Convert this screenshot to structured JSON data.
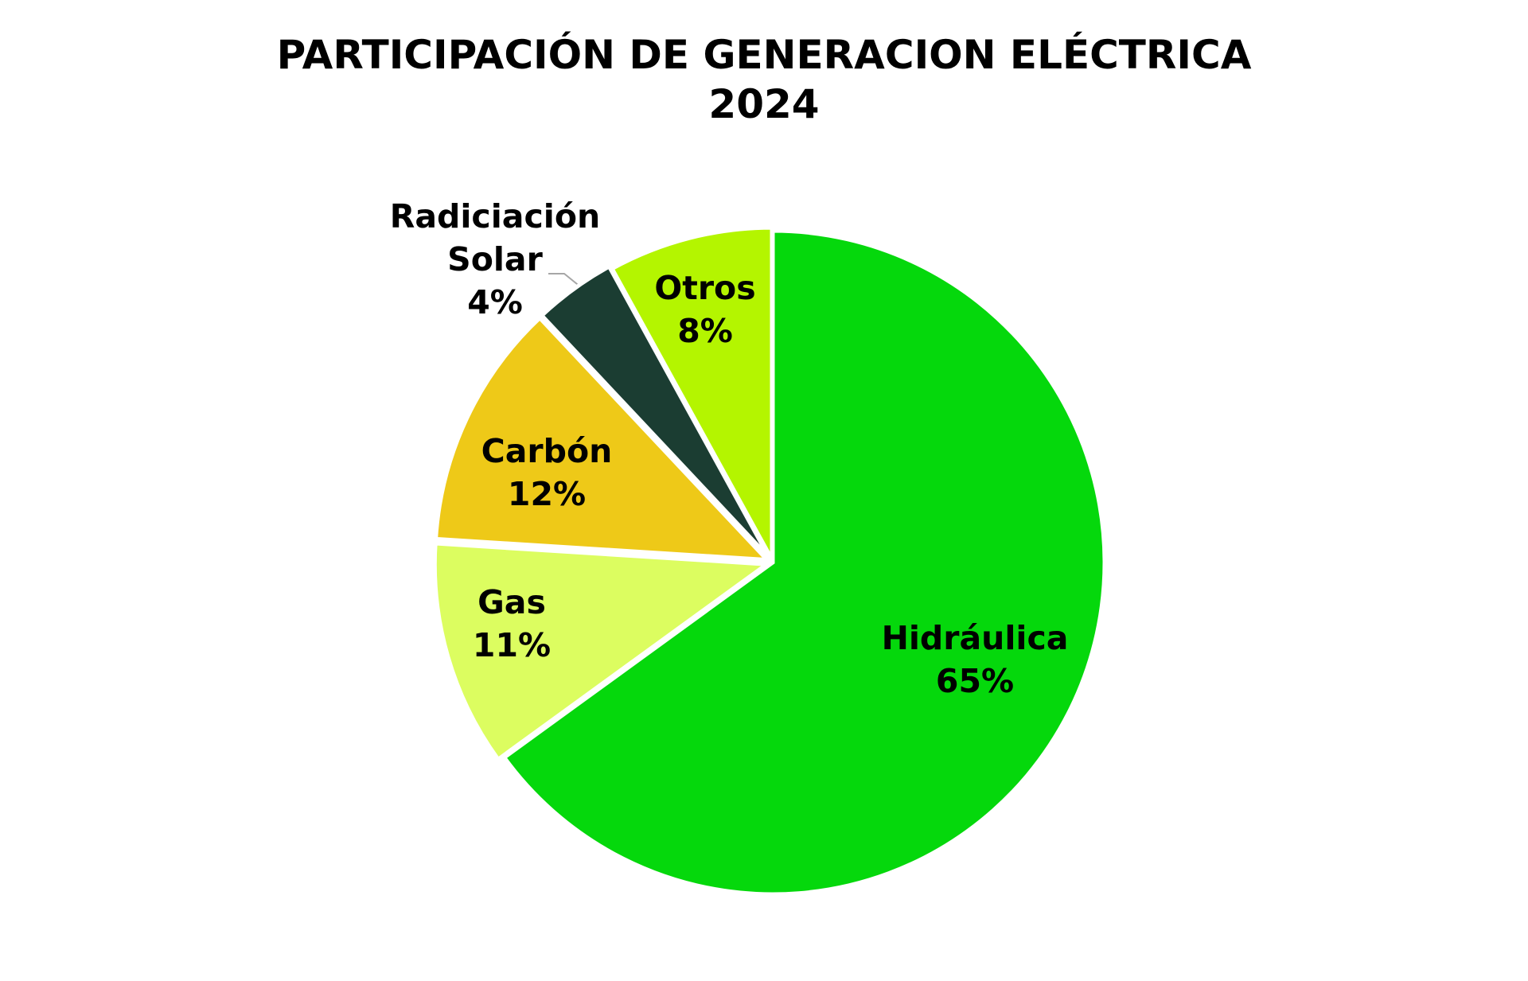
{
  "chart_data": {
    "type": "pie",
    "title": "PARTICIPACIÓN DE GENERACION ELÉCTRICA",
    "subtitle": "2024",
    "categories": [
      "Hidráulica",
      "Gas",
      "Carbón",
      "Radiciación Solar",
      "Otros"
    ],
    "values": [
      65,
      11,
      12,
      4,
      8
    ],
    "value_labels": [
      "65%",
      "11%",
      "12%",
      "4%",
      "8%"
    ],
    "colors": [
      "#05d80c",
      "#dcfd60",
      "#eec918",
      "#1b3d32",
      "#b4f500"
    ]
  }
}
